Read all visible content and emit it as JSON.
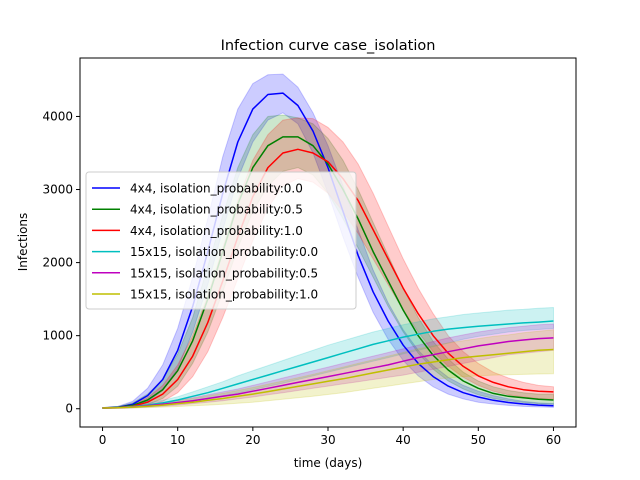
{
  "chart_data": {
    "type": "line",
    "title": "Infection curve case_isolation",
    "xlabel": "time (days)",
    "ylabel": "Infections",
    "xlim": [
      -3,
      63
    ],
    "ylim": [
      -250,
      4800
    ],
    "xticks": [
      0,
      10,
      20,
      30,
      40,
      50,
      60
    ],
    "yticks": [
      0,
      1000,
      2000,
      3000,
      4000
    ],
    "xtick_labels": [
      "0",
      "10",
      "20",
      "30",
      "40",
      "50",
      "60"
    ],
    "ytick_labels": [
      "0",
      "1000",
      "2000",
      "3000",
      "4000"
    ],
    "legend_position": "center-left",
    "grid": false,
    "x": [
      0,
      2,
      4,
      6,
      8,
      10,
      12,
      14,
      16,
      18,
      20,
      22,
      24,
      26,
      28,
      30,
      32,
      34,
      36,
      38,
      40,
      42,
      44,
      46,
      48,
      50,
      52,
      54,
      56,
      58,
      60
    ],
    "series": [
      {
        "name": "4x4, isolation_probability:0.0",
        "color": "#0000ff",
        "values": [
          10,
          20,
          60,
          180,
          400,
          800,
          1400,
          2150,
          2950,
          3650,
          4100,
          4300,
          4320,
          4150,
          3800,
          3300,
          2700,
          2100,
          1600,
          1200,
          870,
          620,
          440,
          310,
          220,
          160,
          115,
          85,
          65,
          50,
          40
        ],
        "lower": [
          5,
          10,
          30,
          100,
          250,
          550,
          1050,
          1700,
          2450,
          3150,
          3650,
          3950,
          4050,
          3900,
          3500,
          2950,
          2350,
          1800,
          1320,
          950,
          660,
          450,
          300,
          200,
          135,
          90,
          65,
          45,
          32,
          25,
          20
        ],
        "upper": [
          15,
          30,
          100,
          280,
          600,
          1100,
          1800,
          2600,
          3450,
          4100,
          4450,
          4570,
          4580,
          4400,
          4050,
          3600,
          3050,
          2450,
          1900,
          1450,
          1080,
          800,
          590,
          430,
          320,
          240,
          180,
          135,
          100,
          80,
          70
        ]
      },
      {
        "name": "4x4, isolation_probability:0.5",
        "color": "#008000",
        "values": [
          10,
          18,
          45,
          120,
          260,
          520,
          930,
          1500,
          2150,
          2800,
          3300,
          3600,
          3720,
          3720,
          3600,
          3350,
          3000,
          2600,
          2150,
          1750,
          1350,
          1000,
          730,
          530,
          380,
          280,
          210,
          170,
          150,
          130,
          120
        ],
        "lower": [
          5,
          8,
          20,
          55,
          140,
          310,
          620,
          1050,
          1600,
          2200,
          2700,
          3050,
          3250,
          3300,
          3200,
          2950,
          2600,
          2200,
          1800,
          1400,
          1050,
          760,
          540,
          380,
          270,
          190,
          140,
          110,
          85,
          70,
          60
        ],
        "upper": [
          15,
          30,
          80,
          200,
          400,
          750,
          1250,
          1950,
          2650,
          3300,
          3750,
          4000,
          4020,
          3980,
          3900,
          3700,
          3400,
          3000,
          2550,
          2100,
          1650,
          1250,
          920,
          680,
          500,
          380,
          300,
          250,
          220,
          200,
          200
        ]
      },
      {
        "name": "4x4, isolation_probability:1.0",
        "color": "#ff0000",
        "values": [
          10,
          15,
          35,
          90,
          200,
          400,
          720,
          1180,
          1750,
          2350,
          2900,
          3300,
          3500,
          3550,
          3500,
          3380,
          3150,
          2850,
          2450,
          2050,
          1650,
          1300,
          1000,
          760,
          580,
          450,
          360,
          300,
          260,
          240,
          230
        ],
        "lower": [
          5,
          7,
          15,
          40,
          100,
          220,
          440,
          780,
          1250,
          1780,
          2300,
          2750,
          3050,
          3150,
          3100,
          2950,
          2700,
          2400,
          2050,
          1700,
          1350,
          1050,
          780,
          580,
          430,
          320,
          240,
          190,
          160,
          140,
          130
        ],
        "upper": [
          15,
          25,
          60,
          150,
          320,
          600,
          1000,
          1550,
          2200,
          2850,
          3400,
          3750,
          3950,
          3980,
          3970,
          3850,
          3650,
          3350,
          2950,
          2500,
          2050,
          1650,
          1300,
          1000,
          780,
          620,
          500,
          420,
          360,
          320,
          300
        ]
      },
      {
        "name": "15x15, isolation_probability:0.0",
        "color": "#00bfbf",
        "values": [
          10,
          15,
          30,
          50,
          80,
          120,
          170,
          220,
          280,
          340,
          400,
          460,
          520,
          580,
          640,
          700,
          760,
          820,
          880,
          930,
          980,
          1020,
          1060,
          1090,
          1110,
          1130,
          1145,
          1160,
          1175,
          1185,
          1200
        ],
        "lower": [
          5,
          8,
          15,
          28,
          45,
          70,
          100,
          135,
          175,
          215,
          260,
          305,
          350,
          400,
          450,
          500,
          550,
          600,
          650,
          700,
          750,
          800,
          850,
          900,
          950,
          990,
          1020,
          1050,
          1070,
          1085,
          1100
        ],
        "upper": [
          15,
          25,
          45,
          75,
          115,
          165,
          230,
          300,
          370,
          450,
          520,
          590,
          660,
          730,
          800,
          870,
          930,
          990,
          1050,
          1100,
          1150,
          1190,
          1230,
          1260,
          1290,
          1310,
          1330,
          1350,
          1360,
          1375,
          1385
        ]
      },
      {
        "name": "15x15, isolation_probability:0.5",
        "color": "#bf00bf",
        "values": [
          10,
          14,
          25,
          40,
          60,
          85,
          110,
          140,
          170,
          200,
          240,
          280,
          320,
          360,
          400,
          440,
          480,
          520,
          560,
          600,
          650,
          700,
          740,
          780,
          820,
          860,
          890,
          920,
          940,
          960,
          970
        ],
        "lower": [
          5,
          7,
          12,
          22,
          35,
          50,
          70,
          90,
          110,
          135,
          160,
          190,
          220,
          250,
          280,
          310,
          340,
          370,
          400,
          430,
          460,
          500,
          540,
          580,
          620,
          660,
          700,
          740,
          760,
          780,
          800
        ],
        "upper": [
          15,
          22,
          40,
          60,
          85,
          115,
          150,
          190,
          230,
          270,
          320,
          370,
          420,
          470,
          520,
          570,
          620,
          670,
          720,
          770,
          820,
          870,
          920,
          970,
          1010,
          1050,
          1080,
          1110,
          1130,
          1150,
          1160
        ]
      },
      {
        "name": "15x15, isolation_probability:1.0",
        "color": "#bfbf00",
        "values": [
          10,
          13,
          22,
          35,
          50,
          70,
          90,
          115,
          140,
          170,
          200,
          235,
          270,
          305,
          340,
          375,
          410,
          450,
          490,
          530,
          570,
          610,
          640,
          670,
          700,
          720,
          740,
          760,
          780,
          800,
          810
        ],
        "lower": [
          5,
          6,
          10,
          16,
          22,
          30,
          40,
          50,
          60,
          75,
          90,
          110,
          130,
          150,
          170,
          195,
          220,
          250,
          280,
          310,
          340,
          370,
          400,
          420,
          440,
          450,
          460,
          465,
          470,
          475,
          480
        ],
        "upper": [
          15,
          20,
          35,
          55,
          80,
          110,
          140,
          175,
          210,
          250,
          290,
          335,
          380,
          425,
          470,
          520,
          570,
          620,
          670,
          720,
          770,
          820,
          860,
          900,
          930,
          960,
          990,
          1010,
          1040,
          1060,
          1080
        ]
      }
    ]
  }
}
